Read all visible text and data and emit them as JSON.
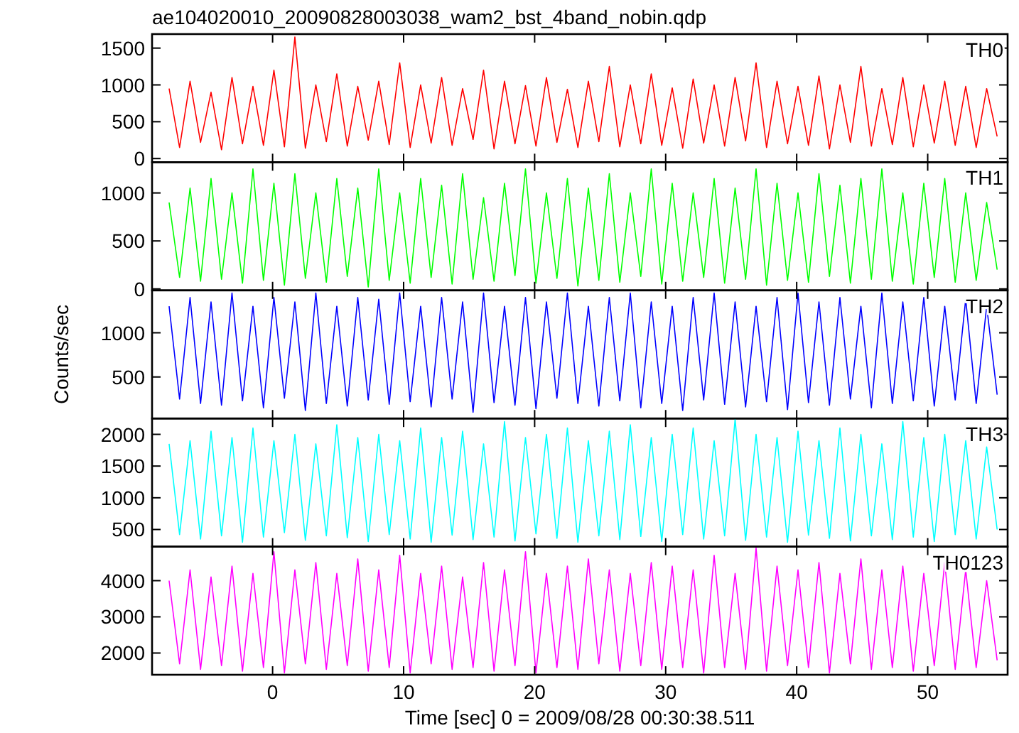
{
  "chart_data": [
    {
      "type": "line",
      "title": "ae104020010_20090828003038_wam2_bst_4band_nobin.qdp",
      "annotations": [
        "TH0"
      ],
      "tick_labels": "y",
      "xlim": [
        -9.2,
        56.1
      ],
      "xticks": [
        0,
        10,
        20,
        30,
        40,
        50
      ],
      "ylim": [
        -50,
        1690
      ],
      "yticks": [
        0,
        500,
        1000,
        1500
      ],
      "grid": false,
      "x": [
        -7.9,
        -7.1,
        -6.3,
        -5.5,
        -4.7,
        -3.9,
        -3.1,
        -2.3,
        -1.5,
        -0.7,
        0.1,
        0.9,
        1.7,
        2.5,
        3.3,
        4.1,
        4.9,
        5.7,
        6.5,
        7.3,
        8.1,
        8.9,
        9.7,
        10.5,
        11.3,
        12.1,
        12.9,
        13.7,
        14.5,
        15.3,
        16.1,
        16.9,
        17.7,
        18.5,
        19.3,
        20.1,
        20.9,
        21.7,
        22.5,
        23.3,
        24.1,
        24.9,
        25.7,
        26.5,
        27.3,
        28.1,
        28.9,
        29.7,
        30.5,
        31.3,
        32.1,
        32.9,
        33.7,
        34.5,
        35.3,
        36.1,
        36.9,
        37.7,
        38.5,
        39.3,
        40.1,
        40.9,
        41.7,
        42.5,
        43.3,
        44.1,
        44.9,
        45.7,
        46.5,
        47.3,
        48.1,
        48.9,
        49.7,
        50.5,
        51.3,
        52.1,
        52.9,
        53.7,
        54.5,
        55.3
      ],
      "series": [
        {
          "color": "#ff0000",
          "values": [
            950,
            150,
            1050,
            220,
            900,
            120,
            1100,
            200,
            980,
            180,
            1200,
            160,
            1650,
            140,
            1000,
            230,
            1150,
            170,
            980,
            250,
            1050,
            190,
            1300,
            150,
            1000,
            210,
            1100,
            180,
            950,
            260,
            1200,
            130,
            1050,
            200,
            990,
            170,
            1100,
            220,
            940,
            150,
            1050,
            230,
            1250,
            160,
            1000,
            200,
            1150,
            180,
            960,
            140,
            1080,
            210,
            1000,
            170,
            1100,
            240,
            1300,
            150,
            1050,
            200,
            980,
            180,
            1120,
            130,
            1000,
            220,
            1250,
            170,
            950,
            190,
            1100,
            160,
            1000,
            210,
            1050,
            180,
            980,
            150,
            950,
            300
          ]
        }
      ]
    },
    {
      "type": "line",
      "annotations": [
        "TH1"
      ],
      "tick_labels": "y",
      "xlim": [
        -9.2,
        56.1
      ],
      "xticks": [
        0,
        10,
        20,
        30,
        40,
        50
      ],
      "ylim": [
        -15,
        1320
      ],
      "yticks": [
        0,
        500,
        1000
      ],
      "grid": false,
      "x": [
        -7.9,
        -7.1,
        -6.3,
        -5.5,
        -4.7,
        -3.9,
        -3.1,
        -2.3,
        -1.5,
        -0.7,
        0.1,
        0.9,
        1.7,
        2.5,
        3.3,
        4.1,
        4.9,
        5.7,
        6.5,
        7.3,
        8.1,
        8.9,
        9.7,
        10.5,
        11.3,
        12.1,
        12.9,
        13.7,
        14.5,
        15.3,
        16.1,
        16.9,
        17.7,
        18.5,
        19.3,
        20.1,
        20.9,
        21.7,
        22.5,
        23.3,
        24.1,
        24.9,
        25.7,
        26.5,
        27.3,
        28.1,
        28.9,
        29.7,
        30.5,
        31.3,
        32.1,
        32.9,
        33.7,
        34.5,
        35.3,
        36.1,
        36.9,
        37.7,
        38.5,
        39.3,
        40.1,
        40.9,
        41.7,
        42.5,
        43.3,
        44.1,
        44.9,
        45.7,
        46.5,
        47.3,
        48.1,
        48.9,
        49.7,
        50.5,
        51.3,
        52.1,
        52.9,
        53.7,
        54.5,
        55.3
      ],
      "series": [
        {
          "color": "#00ff00",
          "values": [
            900,
            120,
            1050,
            80,
            1150,
            100,
            1000,
            60,
            1250,
            90,
            1100,
            40,
            1200,
            110,
            1000,
            70,
            1150,
            130,
            1050,
            20,
            1250,
            90,
            1000,
            60,
            1150,
            120,
            1080,
            50,
            1200,
            100,
            950,
            80,
            1100,
            140,
            1250,
            60,
            1000,
            110,
            1150,
            30,
            1050,
            90,
            1200,
            70,
            1000,
            130,
            1250,
            50,
            1100,
            80,
            1000,
            120,
            1150,
            60,
            1050,
            100,
            1250,
            40,
            1100,
            90,
            1000,
            70,
            1200,
            130,
            1080,
            60,
            1150,
            100,
            1250,
            80,
            1000,
            50,
            1100,
            120,
            1150,
            70,
            1000,
            90,
            900,
            200
          ]
        }
      ]
    },
    {
      "type": "line",
      "annotations": [
        "TH2"
      ],
      "ylabel": "Counts/sec",
      "tick_labels": "y",
      "xlim": [
        -9.2,
        56.1
      ],
      "xticks": [
        0,
        10,
        20,
        30,
        40,
        50
      ],
      "ylim": [
        30,
        1480
      ],
      "yticks": [
        500,
        1000
      ],
      "grid": false,
      "x": [
        -7.9,
        -7.1,
        -6.3,
        -5.5,
        -4.7,
        -3.9,
        -3.1,
        -2.3,
        -1.5,
        -0.7,
        0.1,
        0.9,
        1.7,
        2.5,
        3.3,
        4.1,
        4.9,
        5.7,
        6.5,
        7.3,
        8.1,
        8.9,
        9.7,
        10.5,
        11.3,
        12.1,
        12.9,
        13.7,
        14.5,
        15.3,
        16.1,
        16.9,
        17.7,
        18.5,
        19.3,
        20.1,
        20.9,
        21.7,
        22.5,
        23.3,
        24.1,
        24.9,
        25.7,
        26.5,
        27.3,
        28.1,
        28.9,
        29.7,
        30.5,
        31.3,
        32.1,
        32.9,
        33.7,
        34.5,
        35.3,
        36.1,
        36.9,
        37.7,
        38.5,
        39.3,
        40.1,
        40.9,
        41.7,
        42.5,
        43.3,
        44.1,
        44.9,
        45.7,
        46.5,
        47.3,
        48.1,
        48.9,
        49.7,
        50.5,
        51.3,
        52.1,
        52.9,
        53.7,
        54.5,
        55.3
      ],
      "series": [
        {
          "color": "#0000ff",
          "values": [
            1300,
            250,
            1400,
            200,
            1350,
            180,
            1450,
            230,
            1300,
            150,
            1400,
            260,
            1350,
            120,
            1450,
            200,
            1300,
            170,
            1400,
            240,
            1380,
            190,
            1450,
            220,
            1300,
            160,
            1400,
            250,
            1350,
            100,
            1450,
            210,
            1300,
            180,
            1400,
            140,
            1350,
            260,
            1450,
            200,
            1300,
            170,
            1400,
            230,
            1450,
            150,
            1350,
            200,
            1300,
            120,
            1400,
            240,
            1450,
            190,
            1350,
            160,
            1300,
            220,
            1400,
            130,
            1450,
            210,
            1350,
            180,
            1400,
            250,
            1300,
            150,
            1450,
            200,
            1350,
            230,
            1400,
            170,
            1300,
            240,
            1380,
            200,
            1300,
            300
          ]
        }
      ]
    },
    {
      "type": "line",
      "annotations": [
        "TH3"
      ],
      "tick_labels": "y",
      "xlim": [
        -9.2,
        56.1
      ],
      "xticks": [
        0,
        10,
        20,
        30,
        40,
        50
      ],
      "ylim": [
        230,
        2250
      ],
      "yticks": [
        500,
        1000,
        1500,
        2000
      ],
      "grid": false,
      "x": [
        -7.9,
        -7.1,
        -6.3,
        -5.5,
        -4.7,
        -3.9,
        -3.1,
        -2.3,
        -1.5,
        -0.7,
        0.1,
        0.9,
        1.7,
        2.5,
        3.3,
        4.1,
        4.9,
        5.7,
        6.5,
        7.3,
        8.1,
        8.9,
        9.7,
        10.5,
        11.3,
        12.1,
        12.9,
        13.7,
        14.5,
        15.3,
        16.1,
        16.9,
        17.7,
        18.5,
        19.3,
        20.1,
        20.9,
        21.7,
        22.5,
        23.3,
        24.1,
        24.9,
        25.7,
        26.5,
        27.3,
        28.1,
        28.9,
        29.7,
        30.5,
        31.3,
        32.1,
        32.9,
        33.7,
        34.5,
        35.3,
        36.1,
        36.9,
        37.7,
        38.5,
        39.3,
        40.1,
        40.9,
        41.7,
        42.5,
        43.3,
        44.1,
        44.9,
        45.7,
        46.5,
        47.3,
        48.1,
        48.9,
        49.7,
        50.5,
        51.3,
        52.1,
        52.9,
        53.7,
        54.5,
        55.3
      ],
      "series": [
        {
          "color": "#00ffff",
          "values": [
            1850,
            420,
            1900,
            350,
            2050,
            400,
            1950,
            300,
            2100,
            380,
            1900,
            450,
            2000,
            330,
            1850,
            400,
            2150,
            370,
            1950,
            310,
            2000,
            420,
            1900,
            350,
            2100,
            300,
            1950,
            410,
            2050,
            340,
            1850,
            380,
            2200,
            320,
            1950,
            430,
            2000,
            360,
            2100,
            300,
            1900,
            400,
            2050,
            340,
            2150,
            390,
            1950,
            310,
            2000,
            420,
            2100,
            350,
            1900,
            400,
            2240,
            330,
            2000,
            380,
            1950,
            300,
            2050,
            410,
            1900,
            360,
            2100,
            320,
            2000,
            400,
            1850,
            340,
            2200,
            380,
            1950,
            310,
            2000,
            420,
            1900,
            350,
            1800,
            500
          ]
        }
      ]
    },
    {
      "type": "line",
      "annotations": [
        "TH0123"
      ],
      "xlabel": "Time [sec] 0 = 2009/08/28 00:30:38.511",
      "xlim": [
        -9.2,
        56.1
      ],
      "xticks": [
        0,
        10,
        20,
        30,
        40,
        50
      ],
      "ylim": [
        1400,
        4940
      ],
      "yticks": [
        2000,
        3000,
        4000
      ],
      "grid": false,
      "x": [
        -7.9,
        -7.1,
        -6.3,
        -5.5,
        -4.7,
        -3.9,
        -3.1,
        -2.3,
        -1.5,
        -0.7,
        0.1,
        0.9,
        1.7,
        2.5,
        3.3,
        4.1,
        4.9,
        5.7,
        6.5,
        7.3,
        8.1,
        8.9,
        9.7,
        10.5,
        11.3,
        12.1,
        12.9,
        13.7,
        14.5,
        15.3,
        16.1,
        16.9,
        17.7,
        18.5,
        19.3,
        20.1,
        20.9,
        21.7,
        22.5,
        23.3,
        24.1,
        24.9,
        25.7,
        26.5,
        27.3,
        28.1,
        28.9,
        29.7,
        30.5,
        31.3,
        32.1,
        32.9,
        33.7,
        34.5,
        35.3,
        36.1,
        36.9,
        37.7,
        38.5,
        39.3,
        40.1,
        40.9,
        41.7,
        42.5,
        43.3,
        44.1,
        44.9,
        45.7,
        46.5,
        47.3,
        48.1,
        48.9,
        49.7,
        50.5,
        51.3,
        52.1,
        52.9,
        53.7,
        54.5,
        55.3
      ],
      "series": [
        {
          "color": "#ff00ff",
          "values": [
            4000,
            1700,
            4300,
            1550,
            4100,
            1650,
            4400,
            1500,
            4200,
            1600,
            4800,
            1450,
            4300,
            1700,
            4500,
            1550,
            4200,
            1650,
            4600,
            1500,
            4300,
            1600,
            4700,
            1450,
            4200,
            1700,
            4400,
            1550,
            4100,
            1600,
            4500,
            1500,
            4300,
            1650,
            4800,
            1450,
            4200,
            1600,
            4400,
            1550,
            4600,
            1700,
            4300,
            1500,
            4200,
            1650,
            4500,
            1550,
            4400,
            1600,
            4300,
            1450,
            4700,
            1600,
            4200,
            1550,
            4900,
            1500,
            4400,
            1650,
            4300,
            1600,
            4500,
            1450,
            4200,
            1700,
            4600,
            1550,
            4300,
            1600,
            4400,
            1500,
            4200,
            1650,
            4500,
            1550,
            4300,
            1600,
            4000,
            1800
          ]
        }
      ]
    }
  ]
}
